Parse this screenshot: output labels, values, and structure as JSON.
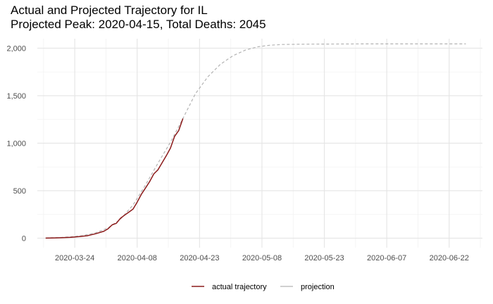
{
  "chart_data": {
    "type": "line",
    "title": "Actual and Projected Trajectory for IL",
    "subtitle": "Projected Peak: 2020-04-15, Total Deaths: 2045",
    "xlabel": "",
    "ylabel": "",
    "x_axis_type": "date",
    "xlim": [
      "2020-03-15",
      "2020-06-30"
    ],
    "ylim": [
      -100,
      2100
    ],
    "x_ticks": [
      "2020-03-24",
      "2020-04-08",
      "2020-04-23",
      "2020-05-08",
      "2020-05-23",
      "2020-06-07",
      "2020-06-22"
    ],
    "y_ticks": [
      0,
      500,
      1000,
      1500,
      2000
    ],
    "y_tick_labels": [
      "0",
      "500",
      "1,000",
      "1,500",
      "2,000"
    ],
    "grid": true,
    "legend_position": "bottom",
    "series": [
      {
        "name": "actual trajectory",
        "color": "#8b1a1a",
        "line_style": "solid",
        "points": [
          [
            "2020-03-17",
            1
          ],
          [
            "2020-03-19",
            3
          ],
          [
            "2020-03-21",
            5
          ],
          [
            "2020-03-23",
            9
          ],
          [
            "2020-03-25",
            16
          ],
          [
            "2020-03-27",
            26
          ],
          [
            "2020-03-29",
            47
          ],
          [
            "2020-03-31",
            73
          ],
          [
            "2020-04-01",
            99
          ],
          [
            "2020-04-02",
            141
          ],
          [
            "2020-04-03",
            157
          ],
          [
            "2020-04-04",
            210
          ],
          [
            "2020-04-05",
            243
          ],
          [
            "2020-04-06",
            274
          ],
          [
            "2020-04-07",
            307
          ],
          [
            "2020-04-08",
            380
          ],
          [
            "2020-04-09",
            462
          ],
          [
            "2020-04-10",
            528
          ],
          [
            "2020-04-11",
            596
          ],
          [
            "2020-04-12",
            677
          ],
          [
            "2020-04-13",
            720
          ],
          [
            "2020-04-14",
            794
          ],
          [
            "2020-04-15",
            868
          ],
          [
            "2020-04-16",
            948
          ],
          [
            "2020-04-17",
            1072
          ],
          [
            "2020-04-18",
            1134
          ],
          [
            "2020-04-19",
            1259
          ]
        ]
      },
      {
        "name": "projection",
        "color": "#b3b3b3",
        "line_style": "dashed",
        "points": [
          [
            "2020-03-17",
            3
          ],
          [
            "2020-03-20",
            7
          ],
          [
            "2020-03-23",
            14
          ],
          [
            "2020-03-26",
            28
          ],
          [
            "2020-03-29",
            56
          ],
          [
            "2020-04-01",
            108
          ],
          [
            "2020-04-04",
            200
          ],
          [
            "2020-04-07",
            350
          ],
          [
            "2020-04-10",
            560
          ],
          [
            "2020-04-13",
            790
          ],
          [
            "2020-04-16",
            1010
          ],
          [
            "2020-04-19",
            1260
          ],
          [
            "2020-04-22",
            1520
          ],
          [
            "2020-04-25",
            1700
          ],
          [
            "2020-04-28",
            1830
          ],
          [
            "2020-05-01",
            1920
          ],
          [
            "2020-05-04",
            1980
          ],
          [
            "2020-05-07",
            2015
          ],
          [
            "2020-05-10",
            2032
          ],
          [
            "2020-05-13",
            2039
          ],
          [
            "2020-05-20",
            2043
          ],
          [
            "2020-06-01",
            2045
          ],
          [
            "2020-06-15",
            2045
          ],
          [
            "2020-06-26",
            2045
          ]
        ]
      }
    ]
  }
}
